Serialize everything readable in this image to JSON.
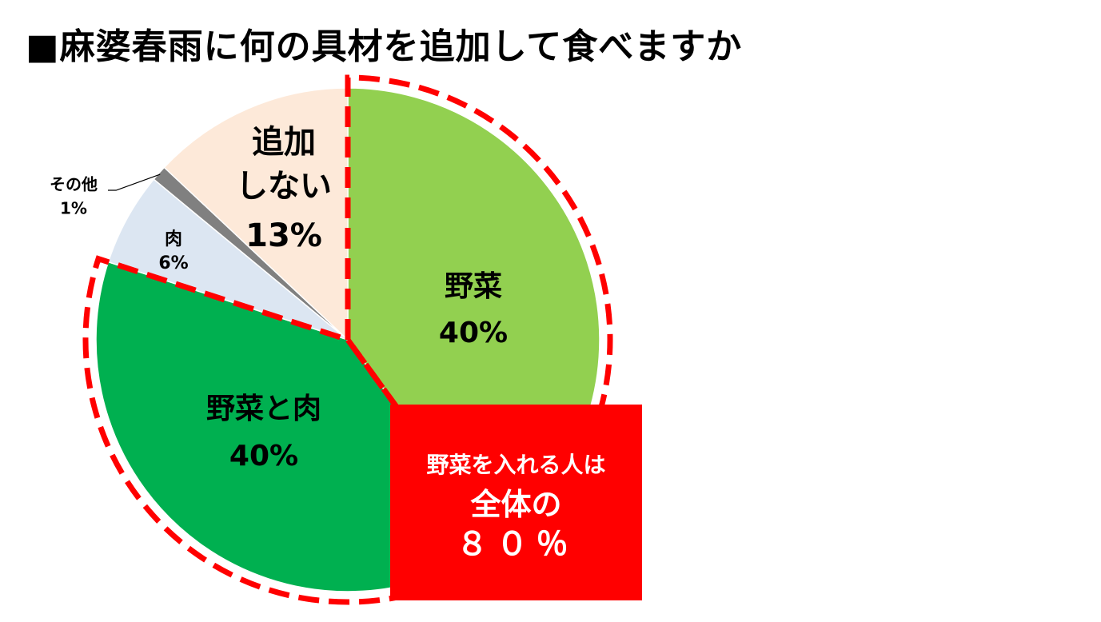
{
  "title": "■麻婆春雨に何の具材を追加して食べますか",
  "colors": {
    "vegetables": "#92d050",
    "veg_and_meat": "#00b050",
    "meat": "#dce6f2",
    "other": "#808080",
    "none": "#fde9d9",
    "highlight": "#ff0000"
  },
  "chart_data": {
    "type": "pie",
    "slices": [
      {
        "key": "vegetables",
        "label": "野菜",
        "value": 40,
        "value_label": "40%"
      },
      {
        "key": "veg_and_meat",
        "label": "野菜と肉",
        "value": 40,
        "value_label": "40%"
      },
      {
        "key": "meat",
        "label": "肉",
        "value": 6,
        "value_label": "6%"
      },
      {
        "key": "other",
        "label": "その他",
        "value": 1,
        "value_label": "1%"
      },
      {
        "key": "none",
        "label": "追加しない",
        "label_lines": [
          "追加",
          "しない"
        ],
        "value": 13,
        "value_label": "13%"
      }
    ],
    "start_angle": "12 o'clock",
    "direction": "clockwise",
    "highlighted_slices": [
      "vegetables",
      "veg_and_meat"
    ]
  },
  "callout": {
    "line1": "野菜を入れる人は",
    "line2": "全体の",
    "line3": "８０％"
  }
}
